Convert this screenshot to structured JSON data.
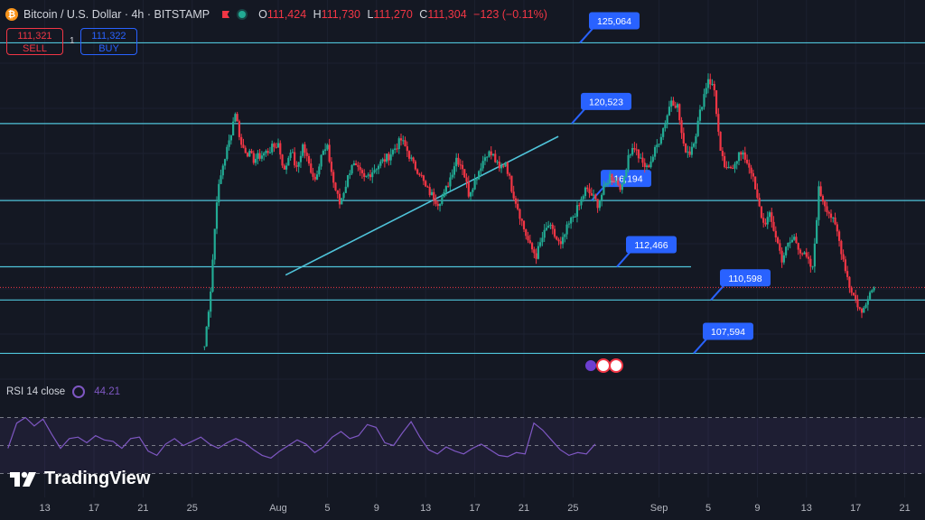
{
  "header": {
    "coin_symbol": "₿",
    "title": "Bitcoin / U.S. Dollar · 4h · BITSTAMP",
    "o_label": "O",
    "o_value": "111,424",
    "h_label": "H",
    "h_value": "111,730",
    "l_label": "L",
    "l_value": "111,270",
    "c_label": "C",
    "c_value": "111,304",
    "change": "−123 (−0.11%)"
  },
  "trade": {
    "sell_price": "111,321",
    "sell_label": "SELL",
    "spread": "1",
    "buy_price": "111,322",
    "buy_label": "BUY"
  },
  "indicator": {
    "name": "RSI 14 close",
    "value": "44.21"
  },
  "branding": {
    "logo_text": "TradingView"
  },
  "colors": {
    "up": "#22ab94",
    "down": "#f23645",
    "level_line": "#4fc3d9",
    "label_bg": "#2962ff",
    "rsi_line": "#7e57c2",
    "background": "#141823"
  },
  "chart_data": {
    "type": "candlestick",
    "symbol": "Bitcoin / U.S. Dollar",
    "interval": "4h",
    "exchange": "BITSTAMP",
    "x_ticks": [
      "13",
      "17",
      "21",
      "25",
      "Aug",
      "5",
      "9",
      "13",
      "17",
      "21",
      "25",
      "Sep",
      "5",
      "9",
      "13",
      "17",
      "21"
    ],
    "y_range": [
      106500,
      125900
    ],
    "levels": [
      {
        "label": "125,064",
        "price": 125064
      },
      {
        "label": "120,523",
        "price": 120523
      },
      {
        "label": "116,194",
        "price": 116194
      },
      {
        "label": "112,466",
        "price": 112466
      },
      {
        "label": "110,598",
        "price": 110598
      },
      {
        "label": "107,594",
        "price": 107594
      }
    ],
    "current_price": 111304,
    "trendline": {
      "from": {
        "x": "Aug 2",
        "y": 112000
      },
      "to": {
        "x": "Aug 22",
        "y": 119800
      }
    },
    "closes": [
      [
        -6,
        108000
      ],
      [
        -5.5,
        111200
      ],
      [
        -5,
        116300
      ],
      [
        -4.5,
        118200
      ],
      [
        -4,
        119500
      ],
      [
        -3.5,
        121200
      ],
      [
        -3,
        119300
      ],
      [
        -2,
        118500
      ],
      [
        -1,
        118900
      ],
      [
        0,
        119400
      ],
      [
        0.5,
        117800
      ],
      [
        1,
        119100
      ],
      [
        1.5,
        117900
      ],
      [
        2,
        119300
      ],
      [
        2.5,
        118200
      ],
      [
        3,
        117400
      ],
      [
        3.5,
        118800
      ],
      [
        4,
        119100
      ],
      [
        4.5,
        117200
      ],
      [
        5,
        116000
      ],
      [
        5.5,
        117100
      ],
      [
        6,
        118300
      ],
      [
        7,
        117400
      ],
      [
        8,
        118100
      ],
      [
        9,
        118700
      ],
      [
        10,
        119600
      ],
      [
        10.5,
        119000
      ],
      [
        11,
        118200
      ],
      [
        11.5,
        117800
      ],
      [
        12,
        116900
      ],
      [
        13,
        116100
      ],
      [
        13.5,
        116500
      ],
      [
        14,
        117500
      ],
      [
        14.5,
        118600
      ],
      [
        15,
        118100
      ],
      [
        15.5,
        116600
      ],
      [
        16,
        117300
      ],
      [
        16.5,
        118200
      ],
      [
        17,
        118900
      ],
      [
        17.5,
        118700
      ],
      [
        18,
        117900
      ],
      [
        18.5,
        118400
      ],
      [
        19,
        116900
      ],
      [
        19.5,
        115800
      ],
      [
        20,
        114600
      ],
      [
        20.5,
        113600
      ],
      [
        21,
        113100
      ],
      [
        21.5,
        114100
      ],
      [
        22,
        114800
      ],
      [
        22.5,
        114200
      ],
      [
        23,
        113600
      ],
      [
        23.5,
        114600
      ],
      [
        24,
        115300
      ],
      [
        24.5,
        115900
      ],
      [
        25,
        116800
      ],
      [
        25.5,
        116500
      ],
      [
        26,
        116000
      ],
      [
        26.5,
        116800
      ],
      [
        27,
        117600
      ],
      [
        27.5,
        117300
      ],
      [
        28,
        116900
      ],
      [
        28.5,
        118800
      ],
      [
        29,
        119200
      ],
      [
        29.5,
        118400
      ],
      [
        30,
        118000
      ],
      [
        30.5,
        118700
      ],
      [
        31,
        119600
      ],
      [
        31.5,
        120600
      ],
      [
        32,
        121900
      ],
      [
        32.5,
        121500
      ],
      [
        33,
        119200
      ],
      [
        33.5,
        118900
      ],
      [
        34,
        120000
      ],
      [
        34.5,
        121700
      ],
      [
        35,
        123100
      ],
      [
        35.5,
        122400
      ],
      [
        36,
        118800
      ],
      [
        36.5,
        117800
      ],
      [
        37,
        118200
      ],
      [
        37.5,
        118800
      ],
      [
        38,
        118600
      ],
      [
        38.5,
        117900
      ],
      [
        39,
        116200
      ],
      [
        39.5,
        114900
      ],
      [
        40,
        115300
      ],
      [
        40.5,
        114200
      ],
      [
        41,
        112900
      ],
      [
        41.5,
        113700
      ],
      [
        42,
        114100
      ],
      [
        42.5,
        113400
      ],
      [
        43,
        112900
      ],
      [
        43.5,
        112300
      ],
      [
        44,
        116800
      ],
      [
        44.5,
        116000
      ],
      [
        45,
        115300
      ],
      [
        45.5,
        114400
      ],
      [
        46,
        112900
      ],
      [
        46.5,
        111400
      ],
      [
        47,
        110600
      ],
      [
        47.5,
        109800
      ],
      [
        48,
        110900
      ],
      [
        48.5,
        111304
      ]
    ],
    "rsi": {
      "period": 14,
      "value": 44.21,
      "levels": [
        70,
        50,
        30
      ],
      "values": [
        48,
        66,
        70,
        64,
        69,
        58,
        48,
        55,
        56,
        52,
        57,
        54,
        53,
        48,
        55,
        56,
        46,
        43,
        51,
        55,
        50,
        53,
        56,
        51,
        48,
        52,
        55,
        52,
        47,
        43,
        41,
        46,
        50,
        54,
        51,
        45,
        49,
        56,
        60,
        55,
        57,
        65,
        63,
        52,
        50,
        59,
        67,
        56,
        47,
        44,
        49,
        46,
        44,
        48,
        51,
        47,
        43,
        42,
        45,
        44,
        66,
        61,
        54,
        47,
        43,
        45,
        44,
        51
      ]
    }
  }
}
